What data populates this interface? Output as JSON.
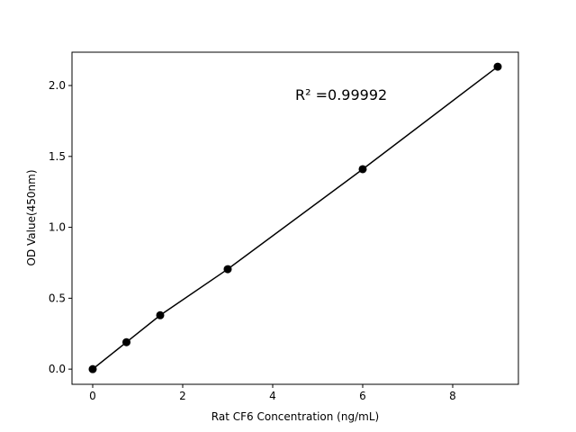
{
  "chart_data": {
    "type": "line",
    "title": "",
    "xlabel": "Rat CF6 Concentration (ng/mL)",
    "ylabel": "OD Value(450nm)",
    "xlim": [
      -0.46,
      9.46
    ],
    "ylim": [
      -0.107,
      2.235
    ],
    "xticks": [
      0,
      2,
      4,
      6,
      8
    ],
    "xtick_labels": [
      "0",
      "2",
      "4",
      "6",
      "8"
    ],
    "yticks": [
      0.0,
      0.5,
      1.0,
      1.5,
      2.0
    ],
    "ytick_labels": [
      "0.0",
      "0.5",
      "1.0",
      "1.5",
      "2.0"
    ],
    "grid": false,
    "series": [
      {
        "x": [
          0,
          0.75,
          1.5,
          3,
          6,
          9
        ],
        "y": [
          0.0,
          0.19,
          0.38,
          0.705,
          1.41,
          2.133
        ],
        "color": "#000000",
        "marker": "circle"
      }
    ],
    "annotations": [
      {
        "text": "R² =0.99992",
        "x": 4.5,
        "y": 1.9
      }
    ]
  }
}
